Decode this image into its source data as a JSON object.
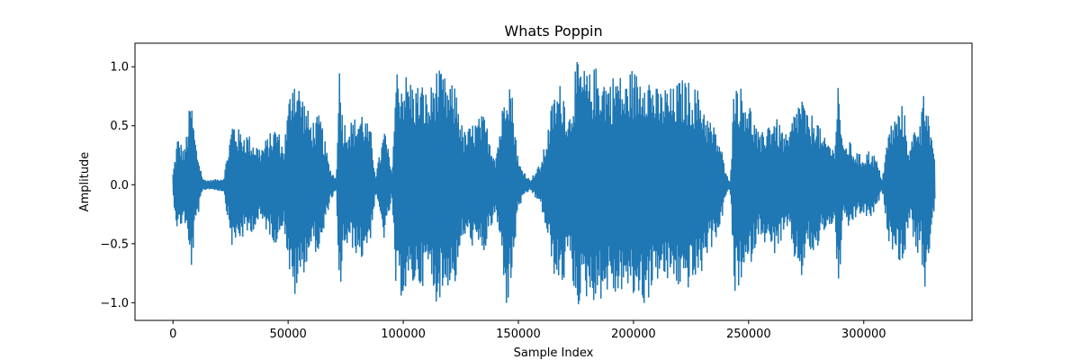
{
  "chart_data": {
    "type": "line",
    "title": "Whats Poppin",
    "xlabel": "Sample Index",
    "ylabel": "Amplitude",
    "xlim": [
      -16500,
      347000
    ],
    "ylim": [
      -1.15,
      1.2
    ],
    "xticks": [
      0,
      50000,
      100000,
      150000,
      200000,
      250000,
      300000
    ],
    "xtick_labels": [
      "0",
      "50000",
      "100000",
      "150000",
      "200000",
      "250000",
      "300000"
    ],
    "yticks": [
      -1.0,
      -0.5,
      0.0,
      0.5,
      1.0
    ],
    "ytick_labels": [
      "−1.0",
      "−0.5",
      "0.0",
      "0.5",
      "1.0"
    ],
    "grid": false,
    "series": [
      {
        "color": "#1f77b4",
        "sample_count": 331000,
        "envelope": {
          "x": [
            0,
            2000,
            5000,
            7800,
            10000,
            13000,
            16000,
            22000,
            26000,
            28000,
            32000,
            38000,
            45000,
            48000,
            52000,
            56000,
            60000,
            64000,
            68000,
            71000,
            72000,
            74000,
            78000,
            82000,
            86000,
            88000,
            92000,
            95000,
            97000,
            99000,
            102000,
            105000,
            108000,
            111000,
            114000,
            117000,
            120000,
            123000,
            126000,
            129000,
            131000,
            135000,
            140000,
            143000,
            145000,
            147000,
            150000,
            155000,
            160000,
            163000,
            165000,
            169000,
            172000,
            175000,
            178000,
            181000,
            184000,
            187000,
            190000,
            193000,
            196000,
            199000,
            202000,
            205000,
            208000,
            211000,
            214000,
            217000,
            220000,
            223000,
            226000,
            229000,
            232000,
            235000,
            238000,
            240000,
            242000,
            244000,
            246000,
            249000,
            252000,
            255000,
            258000,
            261000,
            264000,
            267000,
            270000,
            273000,
            276000,
            279000,
            282000,
            285000,
            287000,
            289000,
            291000,
            293000,
            296000,
            299000,
            302000,
            305000,
            308000,
            311000,
            314000,
            317000,
            320000,
            323000,
            325000,
            326000,
            328000,
            330000,
            331000
          ],
          "upper": [
            0.1,
            0.42,
            0.3,
            0.76,
            0.35,
            0.05,
            0.04,
            0.06,
            0.58,
            0.48,
            0.45,
            0.32,
            0.52,
            0.32,
            1.02,
            0.8,
            0.55,
            0.6,
            0.15,
            0.05,
            1.1,
            0.55,
            0.55,
            0.65,
            0.45,
            0.08,
            0.5,
            0.1,
            1.02,
            0.95,
            0.95,
            0.85,
            0.88,
            0.75,
            1.0,
            0.95,
            0.85,
            0.85,
            0.45,
            0.5,
            0.55,
            0.6,
            0.25,
            0.65,
            1.08,
            0.85,
            0.2,
            0.04,
            0.2,
            0.5,
            0.75,
            0.9,
            0.6,
            1.05,
            1.0,
            0.95,
            1.02,
            0.95,
            0.9,
            1.0,
            0.85,
            1.0,
            0.95,
            1.05,
            0.9,
            0.8,
            0.85,
            0.82,
            0.9,
            0.9,
            0.85,
            0.8,
            0.6,
            0.5,
            0.35,
            0.1,
            0.04,
            1.0,
            0.85,
            0.8,
            0.6,
            0.4,
            0.55,
            0.6,
            0.5,
            0.4,
            0.65,
            0.8,
            0.55,
            0.65,
            0.4,
            0.4,
            0.3,
            0.98,
            0.3,
            0.4,
            0.3,
            0.25,
            0.3,
            0.25,
            0.05,
            0.5,
            0.6,
            0.7,
            0.3,
            0.6,
            0.55,
            1.02,
            0.65,
            0.3,
            0.18
          ]
        }
      }
    ]
  }
}
